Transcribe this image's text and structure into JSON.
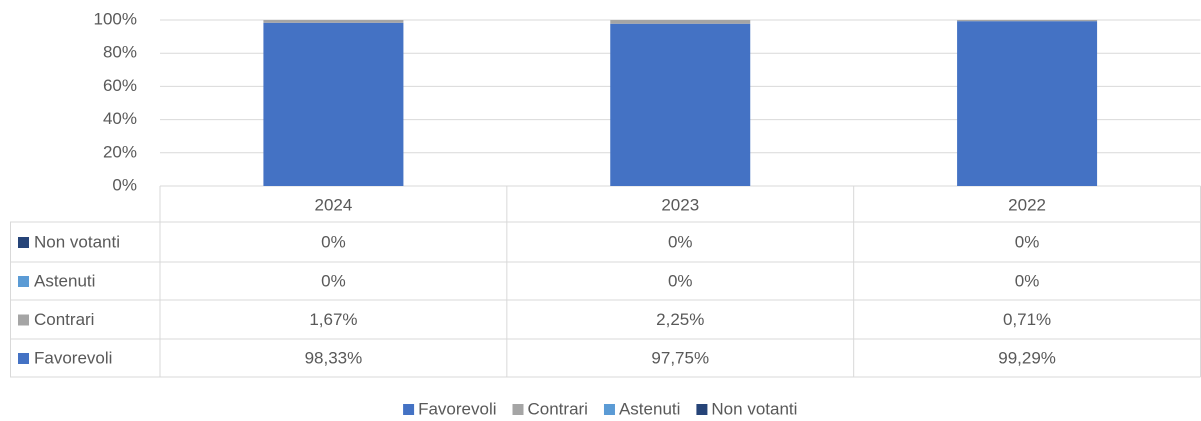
{
  "chart_data": {
    "type": "bar",
    "stacked": true,
    "categories": [
      "2024",
      "2023",
      "2022"
    ],
    "series": [
      {
        "name": "Favorevoli",
        "color": "#4472c4",
        "values": [
          98.33,
          97.75,
          99.29
        ],
        "value_labels": [
          "98,33%",
          "97,75%",
          "99,29%"
        ]
      },
      {
        "name": "Contrari",
        "color": "#a5a5a5",
        "values": [
          1.67,
          2.25,
          0.71
        ],
        "value_labels": [
          "1,67%",
          "2,25%",
          "0,71%"
        ]
      },
      {
        "name": "Astenuti",
        "color": "#5b9bd5",
        "values": [
          0,
          0,
          0
        ],
        "value_labels": [
          "0%",
          "0%",
          "0%"
        ]
      },
      {
        "name": "Non votanti",
        "color": "#264478",
        "values": [
          0,
          0,
          0
        ],
        "value_labels": [
          "0%",
          "0%",
          "0%"
        ]
      }
    ],
    "ylim": [
      0,
      100
    ],
    "yticks": [
      {
        "value": 0,
        "label": "0%"
      },
      {
        "value": 20,
        "label": "20%"
      },
      {
        "value": 40,
        "label": "40%"
      },
      {
        "value": 60,
        "label": "60%"
      },
      {
        "value": 80,
        "label": "80%"
      },
      {
        "value": 100,
        "label": "100%"
      }
    ],
    "grid": true,
    "legend": "bottom"
  }
}
